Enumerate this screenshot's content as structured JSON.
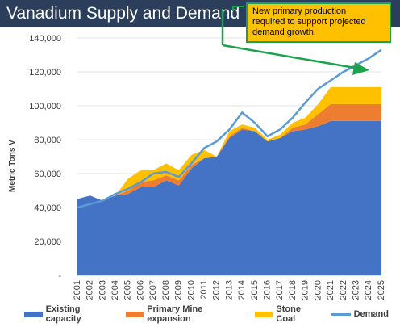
{
  "title": "Vanadium Supply and Demand",
  "callout": {
    "line1": "New primary production",
    "line2": "required to support projected",
    "line3": "demand growth."
  },
  "colors": {
    "title_bg": "#2b3f5c",
    "existing": "#4472c4",
    "primary": "#ed7d31",
    "stone": "#ffc000",
    "demand": "#5b9bd5",
    "callout_bg": "#ffc000",
    "callout_border": "#1aa34a"
  },
  "chart_data": {
    "type": "area",
    "ylabel": "Metric Tons V",
    "ylim": [
      0,
      140000
    ],
    "yticks": [
      "-",
      "20,000",
      "40,000",
      "60,000",
      "80,000",
      "100,000",
      "120,000",
      "140,000"
    ],
    "x": [
      "2001",
      "2002",
      "2003",
      "2004",
      "2005",
      "2006",
      "2007",
      "2008",
      "2009",
      "2010",
      "2011",
      "2012",
      "2013",
      "2014",
      "2015",
      "2016",
      "2017",
      "2018",
      "2019",
      "2020",
      "2021",
      "2022",
      "2023",
      "2024",
      "2025"
    ],
    "series": [
      {
        "name": "Existing capacity",
        "kind": "area",
        "values": [
          45000,
          47000,
          44000,
          47000,
          48000,
          52000,
          52000,
          56000,
          53000,
          63000,
          69000,
          70000,
          81000,
          86000,
          85000,
          79000,
          81000,
          85000,
          86000,
          88000,
          91000,
          91000,
          91000,
          91000,
          91000
        ]
      },
      {
        "name": "Primary Mine expansion",
        "kind": "area",
        "values": [
          0,
          0,
          0,
          0,
          2000,
          3000,
          4000,
          3000,
          3000,
          2000,
          0,
          0,
          1000,
          1000,
          0,
          0,
          0,
          2000,
          3000,
          7000,
          10000,
          10000,
          10000,
          10000,
          10000
        ]
      },
      {
        "name": "Stone Coal",
        "kind": "area",
        "values": [
          0,
          0,
          0,
          0,
          7000,
          7000,
          6000,
          7000,
          6000,
          6000,
          5000,
          0,
          3000,
          2000,
          2000,
          1000,
          2000,
          3000,
          4000,
          6000,
          10000,
          10000,
          10000,
          10000,
          10000
        ]
      },
      {
        "name": "Demand",
        "kind": "line",
        "values": [
          40000,
          42000,
          44000,
          48000,
          51000,
          55000,
          60000,
          61000,
          58000,
          66000,
          75000,
          79000,
          86000,
          96000,
          90000,
          82000,
          86000,
          93000,
          102000,
          110000,
          115000,
          120000,
          124000,
          128000,
          133000
        ]
      }
    ],
    "legend_position": "bottom"
  }
}
